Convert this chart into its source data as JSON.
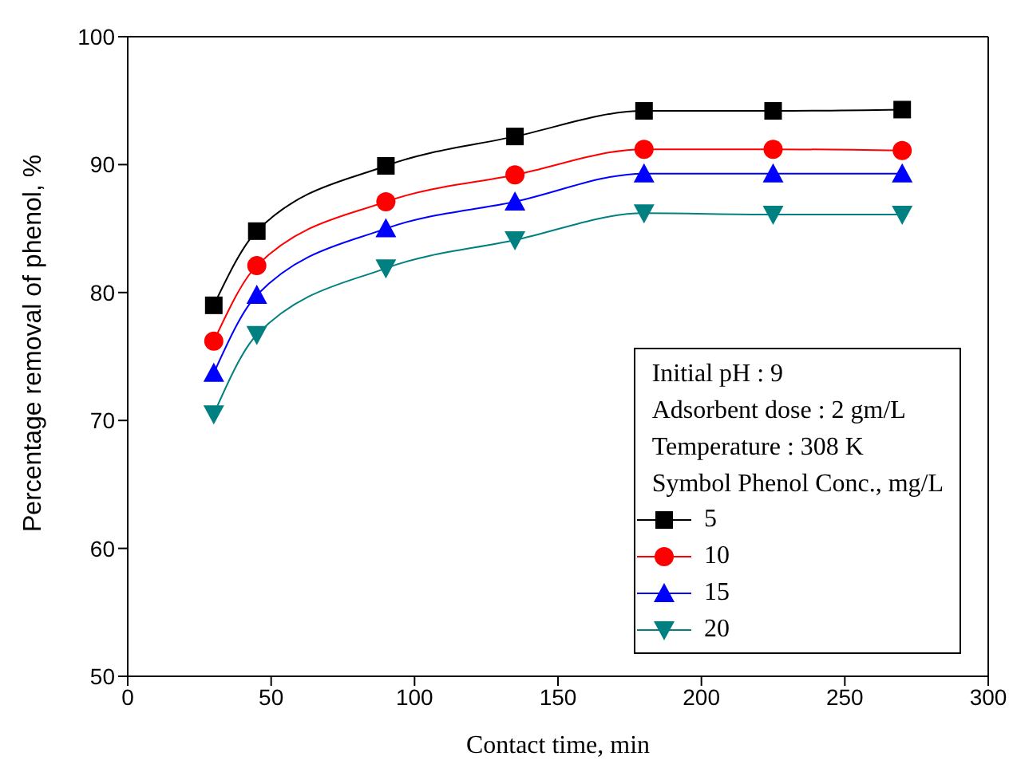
{
  "chart_data": {
    "type": "line",
    "xlabel": "Contact time, min",
    "ylabel": "Percentage removal of phenol, %",
    "legend_title": "Symbol Phenol Conc., mg/L",
    "annotations": [
      "Initial pH : 9",
      "Adsorbent dose : 2 gm/L",
      "Temperature : 308 K"
    ],
    "x": [
      30,
      45,
      90,
      135,
      180,
      225,
      270
    ],
    "series": [
      {
        "name": "5",
        "color": "#000000",
        "marker": "square",
        "values": [
          79.0,
          84.8,
          89.9,
          92.2,
          94.2,
          94.2,
          94.3
        ]
      },
      {
        "name": "10",
        "color": "#ff0000",
        "marker": "circle",
        "values": [
          76.2,
          82.1,
          87.1,
          89.2,
          91.2,
          91.2,
          91.1
        ]
      },
      {
        "name": "15",
        "color": "#0000ff",
        "marker": "triangle",
        "values": [
          73.7,
          79.8,
          85.0,
          87.1,
          89.3,
          89.3,
          89.3
        ]
      },
      {
        "name": "20",
        "color": "#008080",
        "marker": "triangle-down",
        "values": [
          70.5,
          76.7,
          81.9,
          84.1,
          86.2,
          86.1,
          86.1
        ]
      }
    ],
    "xlim": [
      0,
      300
    ],
    "xticks": [
      0,
      50,
      100,
      150,
      200,
      250,
      300
    ],
    "ylim": [
      50,
      100
    ],
    "yticks": [
      50,
      60,
      70,
      80,
      90,
      100
    ],
    "legend": "bottom right",
    "grid": false,
    "line_style": "solid"
  }
}
